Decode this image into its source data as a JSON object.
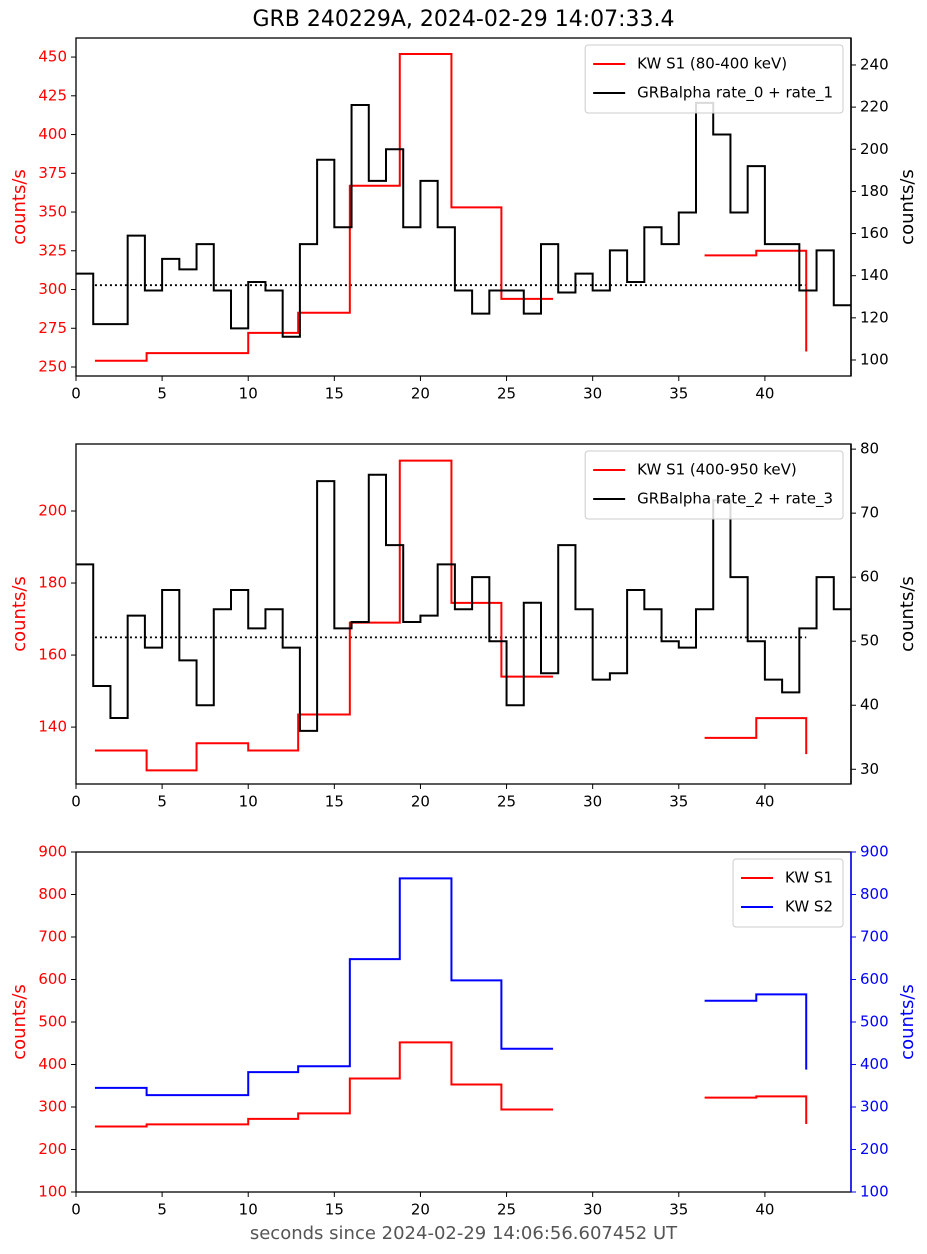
{
  "chart_data": [
    {
      "type": "line",
      "step": "post",
      "title": "GRB 240229A, 2024-02-29 14:07:33.4",
      "ylabel": "counts/s",
      "y2label": "counts/s",
      "y_color": "red",
      "y2_color": "black",
      "xlim": [
        0,
        45
      ],
      "xticks": [
        0,
        5,
        10,
        15,
        20,
        25,
        30,
        35,
        40
      ],
      "ylim": [
        244.2,
        462.3
      ],
      "yticks": [
        250,
        275,
        300,
        325,
        350,
        375,
        400,
        425,
        450
      ],
      "y2lim": [
        92.4,
        252.8
      ],
      "y2ticks": [
        100,
        120,
        140,
        160,
        180,
        200,
        220,
        240
      ],
      "legend": "upper right",
      "series": [
        {
          "name": "KW S1 (80-400 keV)",
          "color": "red",
          "x": [
            1.1,
            4.1,
            7.0,
            10.0,
            12.9,
            15.9,
            18.8,
            21.8,
            24.7,
            27.7,
            32.1,
            36.5,
            39.5,
            42.4
          ],
          "values": [
            254,
            259,
            259,
            272,
            285,
            367,
            452,
            353,
            294,
            294,
            null,
            322,
            325,
            260
          ]
        },
        {
          "name": "GRBalpha rate_0 + rate_1",
          "color": "black",
          "axis": "y2",
          "x": [
            0,
            1,
            2,
            3,
            4,
            5,
            6,
            7,
            8,
            9,
            10,
            11,
            12,
            13,
            14,
            15,
            16,
            17,
            18,
            19,
            20,
            21,
            22,
            23,
            24,
            25,
            26,
            27,
            28,
            29,
            30,
            31,
            32,
            33,
            34,
            35,
            36,
            37,
            38,
            39,
            40,
            41,
            42,
            43,
            44,
            45
          ],
          "values": [
            141,
            117,
            117,
            159,
            133,
            148,
            143,
            155,
            133,
            115,
            137,
            133,
            111,
            155,
            195,
            163,
            221,
            185,
            200,
            163,
            185,
            163,
            133,
            122,
            133,
            133,
            122,
            155,
            132,
            141,
            133,
            152,
            137,
            163,
            155,
            170,
            222,
            207,
            170,
            192,
            155,
            155,
            133,
            152,
            126,
            126
          ]
        }
      ],
      "reference_line": {
        "value": 135.5,
        "x": [
          1.1,
          42.4
        ],
        "axis": "y2",
        "color": "black"
      }
    },
    {
      "type": "line",
      "step": "post",
      "ylabel": "counts/s",
      "y2label": "counts/s",
      "y_color": "red",
      "y2_color": "black",
      "xlim": [
        0,
        45
      ],
      "xticks": [
        0,
        5,
        10,
        15,
        20,
        25,
        30,
        35,
        40
      ],
      "ylim": [
        124.2,
        218.6
      ],
      "yticks": [
        140,
        160,
        180,
        200
      ],
      "y2lim": [
        27.7,
        80.8
      ],
      "y2ticks": [
        30,
        40,
        50,
        60,
        70,
        80
      ],
      "legend": "upper right",
      "series": [
        {
          "name": "KW S1 (400-950 keV)",
          "color": "red",
          "x": [
            1.1,
            4.1,
            7.0,
            10.0,
            12.9,
            15.9,
            18.8,
            21.8,
            24.7,
            27.7,
            32.1,
            36.5,
            39.5,
            42.4
          ],
          "values": [
            133.5,
            128,
            135.5,
            133.5,
            143.5,
            169,
            214,
            174.5,
            154,
            154,
            null,
            137,
            142.5,
            132.5
          ]
        },
        {
          "name": "GRBalpha rate_2 + rate_3",
          "color": "black",
          "axis": "y2",
          "x": [
            0,
            1,
            2,
            3,
            4,
            5,
            6,
            7,
            8,
            9,
            10,
            11,
            12,
            13,
            14,
            15,
            16,
            17,
            18,
            19,
            20,
            21,
            22,
            23,
            24,
            25,
            26,
            27,
            28,
            29,
            30,
            31,
            32,
            33,
            34,
            35,
            36,
            37,
            38,
            39,
            40,
            41,
            42,
            43,
            44,
            45
          ],
          "values": [
            62,
            43,
            38,
            54,
            49,
            58,
            47,
            40,
            55,
            58,
            52,
            55,
            49,
            36,
            75,
            52,
            53,
            76,
            65,
            53,
            54,
            62,
            55,
            60,
            50,
            40,
            56,
            45,
            65,
            55,
            44,
            45,
            58,
            55,
            50,
            49,
            55,
            72,
            60,
            50,
            44,
            42,
            52,
            60,
            55,
            55
          ]
        }
      ],
      "reference_line": {
        "value": 50.6,
        "x": [
          1.1,
          42.4
        ],
        "axis": "y2",
        "color": "black"
      }
    },
    {
      "type": "line",
      "step": "post",
      "ylabel": "counts/s",
      "y2label": "counts/s",
      "y_color": "red",
      "y2_color": "blue",
      "xlabel": "seconds since 2024-02-29 14:06:56.607452 UT",
      "xlim": [
        0,
        45
      ],
      "xticks": [
        0,
        5,
        10,
        15,
        20,
        25,
        30,
        35,
        40
      ],
      "ylim": [
        100,
        900
      ],
      "yticks": [
        100,
        200,
        300,
        400,
        500,
        600,
        700,
        800,
        900
      ],
      "y2lim": [
        100,
        900
      ],
      "y2ticks": [
        100,
        200,
        300,
        400,
        500,
        600,
        700,
        800,
        900
      ],
      "legend": "upper right",
      "series": [
        {
          "name": "KW S1",
          "color": "red",
          "x": [
            1.1,
            4.1,
            7.0,
            10.0,
            12.9,
            15.9,
            18.8,
            21.8,
            24.7,
            27.7,
            32.1,
            36.5,
            39.5,
            42.4
          ],
          "values": [
            254,
            259,
            259,
            272,
            285,
            367,
            452,
            353,
            294,
            294,
            null,
            322,
            325,
            260
          ]
        },
        {
          "name": "KW S2",
          "color": "blue",
          "axis": "y2",
          "x": [
            1.1,
            4.1,
            7.0,
            10.0,
            12.9,
            15.9,
            18.8,
            21.8,
            24.7,
            27.7,
            32.1,
            36.5,
            39.5,
            42.4
          ],
          "values": [
            345,
            328,
            328,
            382,
            396,
            648,
            838,
            598,
            437,
            437,
            null,
            550,
            565,
            388
          ]
        }
      ]
    }
  ]
}
